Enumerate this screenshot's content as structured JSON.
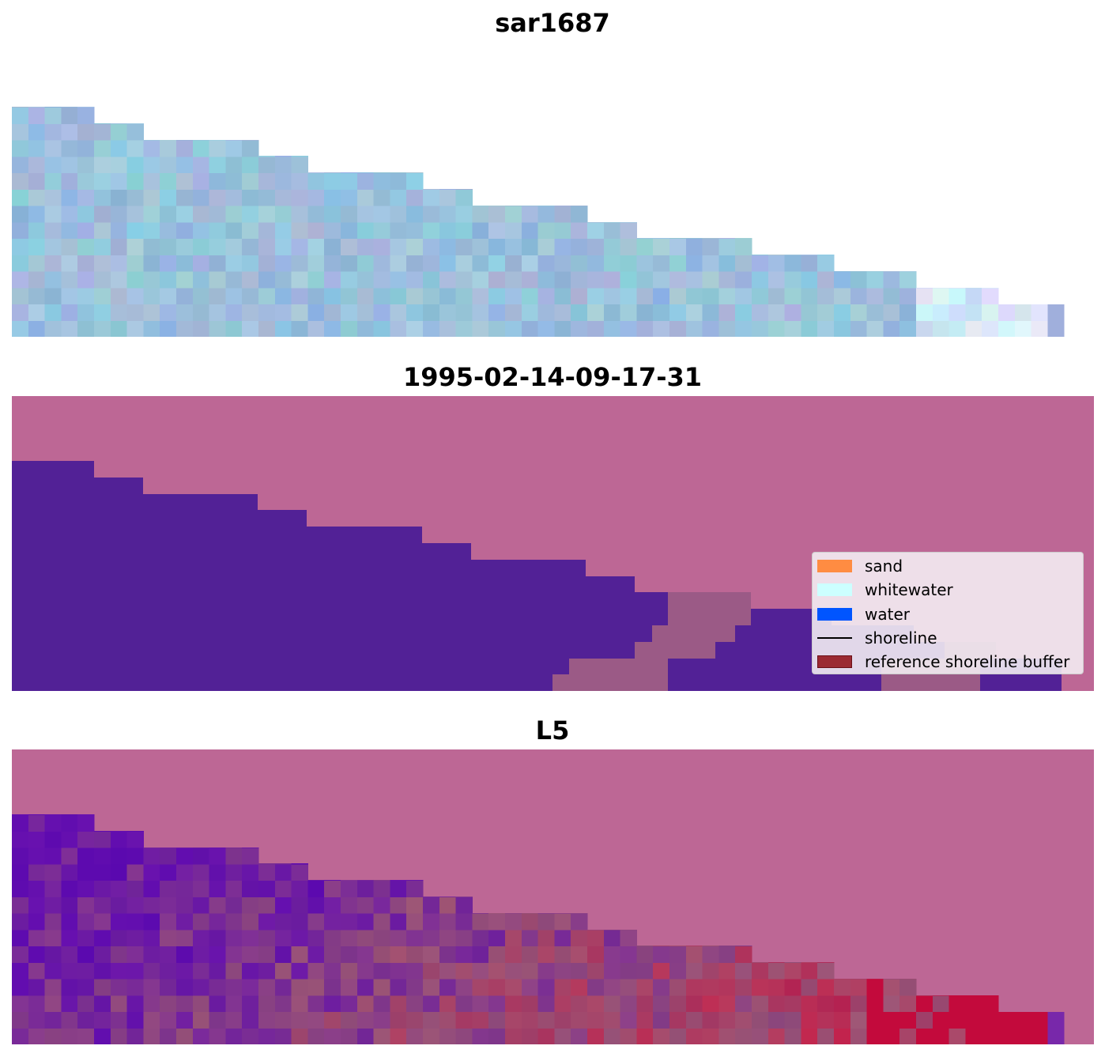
{
  "titles": {
    "panel_1": "sar1687",
    "panel_2": "1995-02-14-09-17-31",
    "panel_3": "L5"
  },
  "legend": {
    "items": [
      {
        "label": "sand",
        "kind": "patch",
        "color": "#ff8c42"
      },
      {
        "label": "whitewater",
        "kind": "patch",
        "color": "#ccffff"
      },
      {
        "label": "water",
        "kind": "patch",
        "color": "#0055ff"
      },
      {
        "label": "shoreline",
        "kind": "line",
        "color": "#000000"
      },
      {
        "label": "reference shoreline buffer",
        "kind": "patch",
        "color": "#9b2a33"
      }
    ]
  },
  "colors": {
    "background_mask": "#bd6795",
    "water_class": "#522196",
    "sand_class": "#9b5a86",
    "rgb_water_light": "#9bc6dd",
    "ndwi_high": "#5b069b",
    "ndwi_low": "#c2083a"
  }
}
